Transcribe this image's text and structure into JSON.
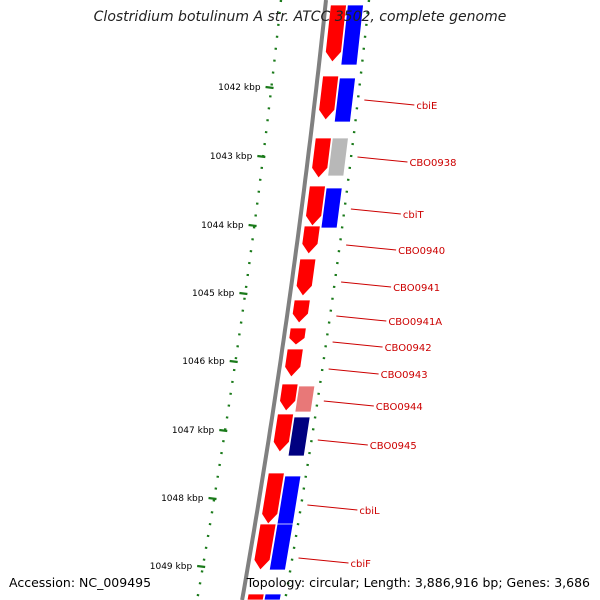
{
  "title": "Clostridium botulinum A str. ATCC 3502, complete genome",
  "footer": {
    "accession": "Accession: NC_009495",
    "stats": "Topology: circular; Length: 3,886,916 bp; Genes: 3,686"
  },
  "colors": {
    "forward_gene": "#ff0000",
    "reverse_gene": "#0000ff",
    "pale_gene": "#b8b8b8",
    "light_red_gene": "#e87878",
    "dark_blue_gene": "#000080",
    "backbone": "#808080",
    "label": "#cc0000",
    "ticks": "#1a7a1a",
    "tick_label": "#000000"
  },
  "kbp_labels": [
    "1042 kbp",
    "1043 kbp",
    "1044 kbp",
    "1045 kbp",
    "1046 kbp",
    "1047 kbp",
    "1048 kbp",
    "1049 kbp"
  ],
  "gene_labels": [
    "cbiE",
    "CBO0938",
    "cbiT",
    "CBO0940",
    "CBO0941",
    "CBO0941A",
    "CBO0942",
    "CBO0943",
    "CBO0944",
    "CBO0945",
    "cbiL",
    "cbiF"
  ]
}
